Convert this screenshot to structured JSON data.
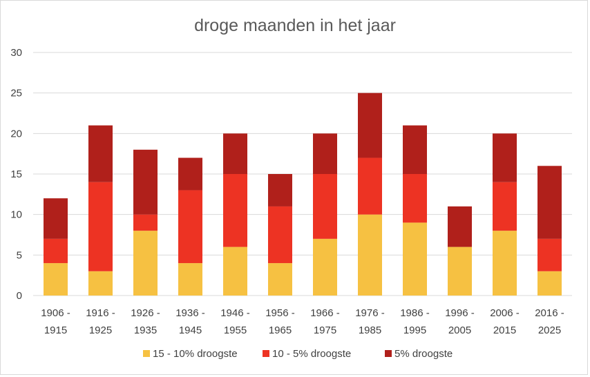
{
  "chart_data": {
    "type": "bar",
    "stacked": true,
    "title": "droge maanden in het jaar",
    "categories": [
      [
        "1906 -",
        "1915"
      ],
      [
        "1916 -",
        "1925"
      ],
      [
        "1926 -",
        "1935"
      ],
      [
        "1936 -",
        "1945"
      ],
      [
        "1946 -",
        "1955"
      ],
      [
        "1956 -",
        "1965"
      ],
      [
        "1966 -",
        "1975"
      ],
      [
        "1976 -",
        "1985"
      ],
      [
        "1986 -",
        "1995"
      ],
      [
        "1996 -",
        "2005"
      ],
      [
        "2006 -",
        "2015"
      ],
      [
        "2016 -",
        "2025"
      ]
    ],
    "series": [
      {
        "name": "15 - 10% droogste",
        "color": "#f6c142",
        "values": [
          4,
          3,
          8,
          4,
          6,
          4,
          7,
          10,
          9,
          6,
          8,
          3
        ]
      },
      {
        "name": "10 - 5% droogste",
        "color": "#ed3323",
        "values": [
          3,
          11,
          2,
          9,
          9,
          7,
          8,
          7,
          6,
          0,
          6,
          4
        ]
      },
      {
        "name": "5% droogste",
        "color": "#b0201b",
        "values": [
          5,
          7,
          8,
          4,
          5,
          4,
          5,
          8,
          6,
          5,
          6,
          9
        ]
      }
    ],
    "yticks": [
      "0",
      "5",
      "10",
      "15",
      "20",
      "25",
      "30"
    ],
    "ylim": [
      0,
      30
    ],
    "grid": true,
    "legend_position": "bottom"
  }
}
